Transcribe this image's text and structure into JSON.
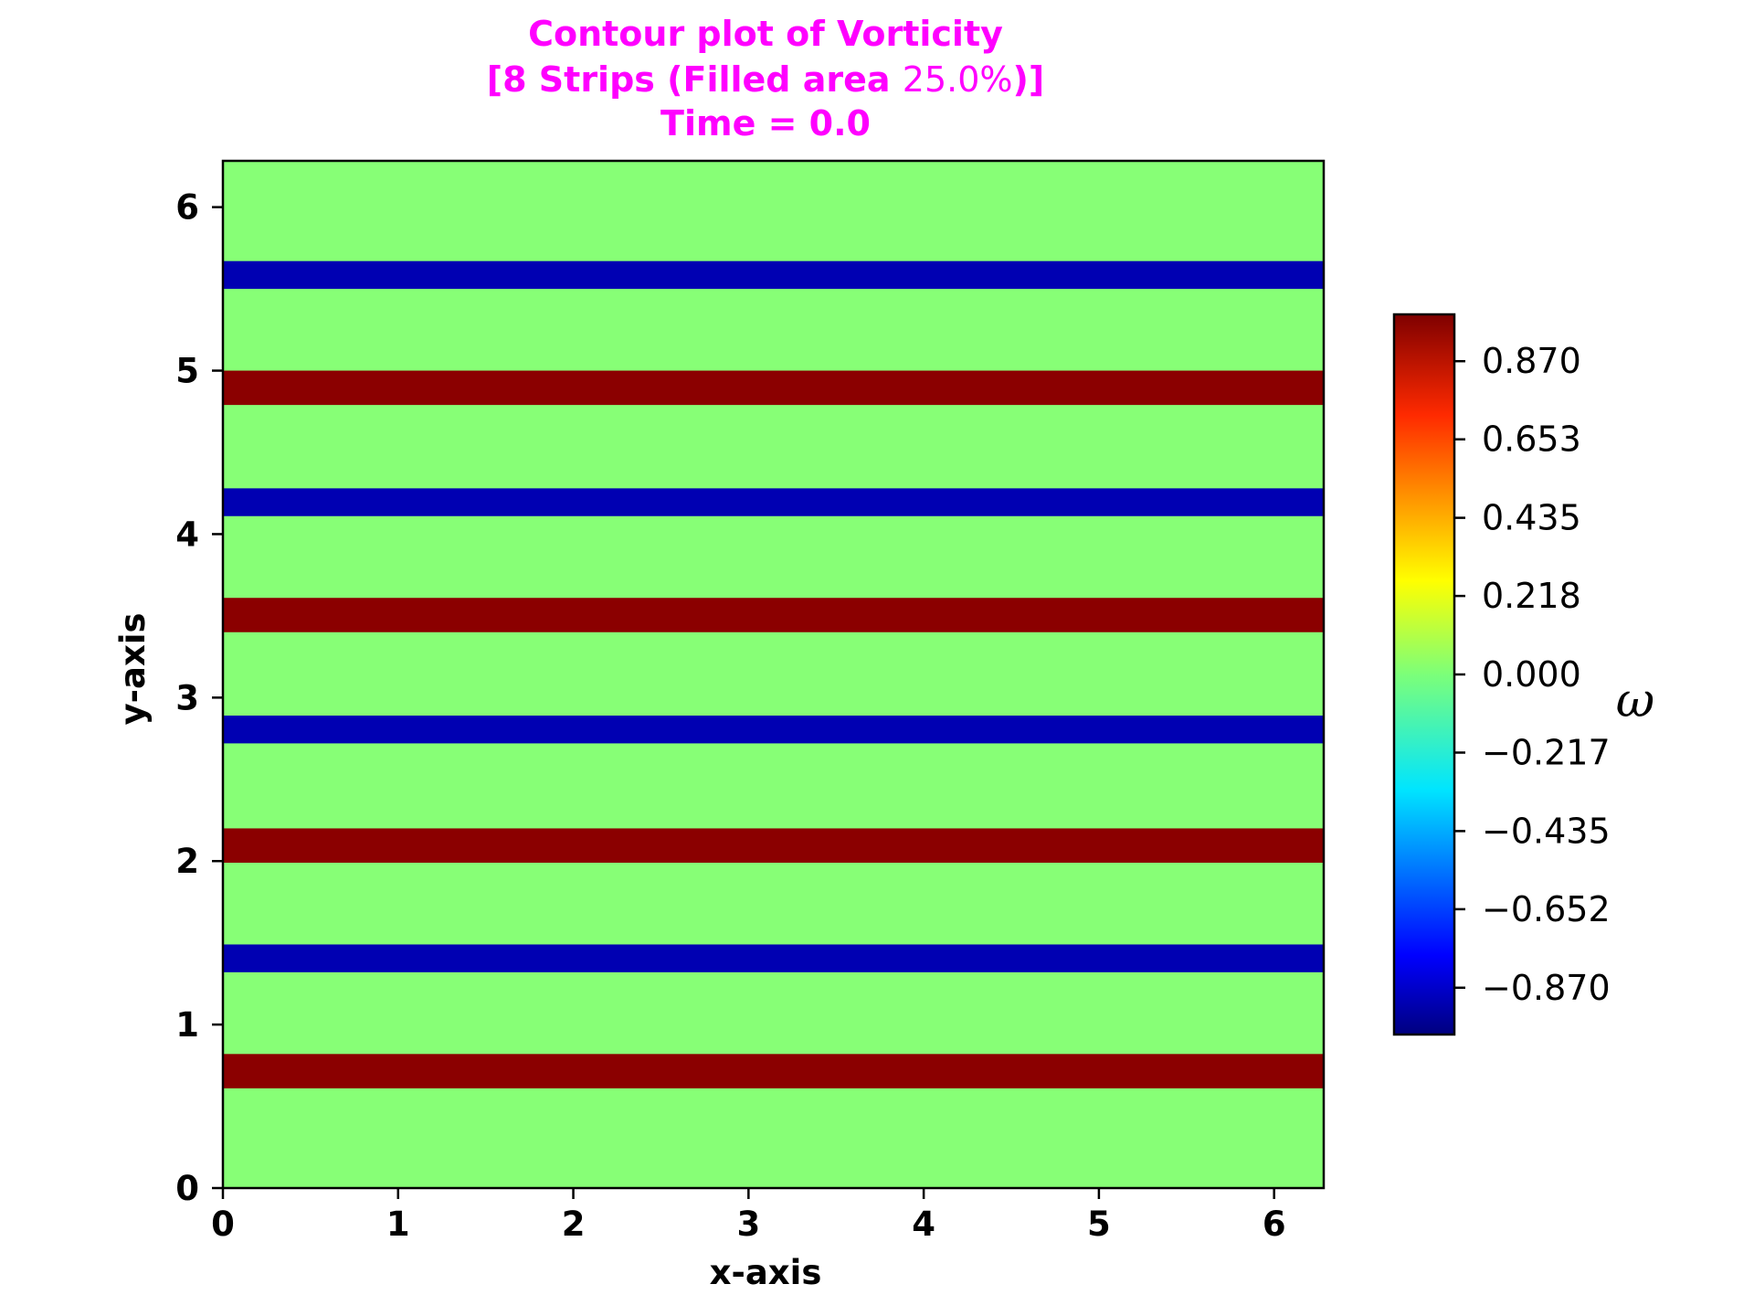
{
  "chart_data": {
    "type": "heatmap",
    "title": {
      "line1": "Contour plot of Vorticity",
      "line2_bold_start": "[8 Strips (Filled area ",
      "line2_normal": "25.0%",
      "line2_bold_end": ")]",
      "line3": "Time = 0.0"
    },
    "xlabel": "x-axis",
    "ylabel": "y-axis",
    "xlim": [
      0,
      6.2832
    ],
    "ylim": [
      0,
      6.2832
    ],
    "xticks": [
      0,
      1,
      2,
      3,
      4,
      5,
      6
    ],
    "yticks": [
      0,
      1,
      2,
      3,
      4,
      5,
      6
    ],
    "xtick_labels": [
      "0",
      "1",
      "2",
      "3",
      "4",
      "5",
      "6"
    ],
    "ytick_labels": [
      "0",
      "1",
      "2",
      "3",
      "4",
      "5",
      "6"
    ],
    "background_value": 0.0,
    "strips": [
      {
        "y0": 0.61,
        "y1": 0.82,
        "value": 1.0,
        "color": "#8b0000"
      },
      {
        "y0": 1.32,
        "y1": 1.49,
        "value": -1.0,
        "color": "#0000b2"
      },
      {
        "y0": 1.99,
        "y1": 2.2,
        "value": 1.0,
        "color": "#8b0000"
      },
      {
        "y0": 2.72,
        "y1": 2.89,
        "value": -1.0,
        "color": "#0000b2"
      },
      {
        "y0": 3.4,
        "y1": 3.61,
        "value": 1.0,
        "color": "#8b0000"
      },
      {
        "y0": 4.11,
        "y1": 4.28,
        "value": -1.0,
        "color": "#0000b2"
      },
      {
        "y0": 4.79,
        "y1": 5.0,
        "value": 1.0,
        "color": "#8b0000"
      },
      {
        "y0": 5.5,
        "y1": 5.67,
        "value": -1.0,
        "color": "#0000b2"
      }
    ],
    "colorbar": {
      "label": "ω",
      "range": [
        -1.0,
        1.0
      ],
      "ticks": [
        0.87,
        0.653,
        0.435,
        0.218,
        0.0,
        -0.217,
        -0.435,
        -0.652,
        -0.87
      ],
      "tick_labels": [
        "0.870",
        "0.653",
        "0.435",
        "0.218",
        "0.000",
        "−0.217",
        "−0.435",
        "−0.652",
        "−0.870"
      ],
      "colormap": "jet"
    },
    "colors": {
      "background": "#87ff76",
      "positive": "#8b0000",
      "negative": "#0000b2",
      "title": "#ff00ff"
    }
  }
}
